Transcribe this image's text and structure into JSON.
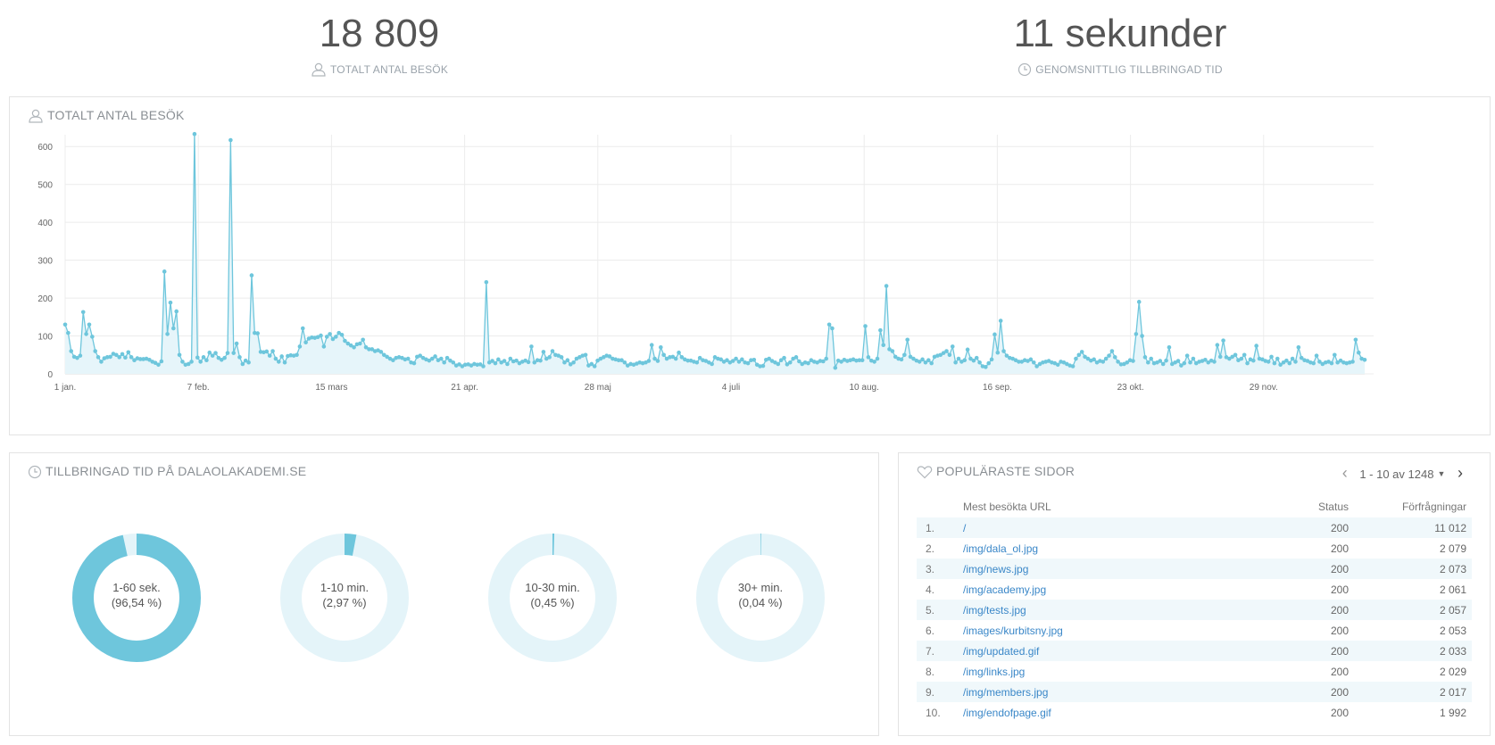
{
  "summary": {
    "total_visits_value": "18 809",
    "total_visits_label": "TOTALT ANTAL BESÖK",
    "avg_time_value": "11 sekunder",
    "avg_time_label": "GENOMSNITTLIG TILLBRINGAD TID"
  },
  "visits_panel": {
    "title": "TOTALT ANTAL BESÖK"
  },
  "chart_data": {
    "type": "area",
    "title": "TOTALT ANTAL BESÖK",
    "xlabel": "",
    "ylabel": "",
    "ylim": [
      0,
      650
    ],
    "yticks": [
      "0",
      "100",
      "200",
      "300",
      "400",
      "500",
      "600"
    ],
    "xticks": [
      "1 jan.",
      "7 feb.",
      "15 mars",
      "21 apr.",
      "28 maj",
      "4 juli",
      "10 aug.",
      "16 sep.",
      "23 okt.",
      "29 nov."
    ],
    "grid": true,
    "color": "#6ec6dc",
    "values": [
      130,
      108,
      60,
      45,
      42,
      48,
      163,
      105,
      130,
      98,
      60,
      44,
      32,
      41,
      44,
      45,
      53,
      50,
      44,
      52,
      43,
      57,
      44,
      36,
      41,
      39,
      39,
      40,
      37,
      32,
      29,
      24,
      33,
      270,
      105,
      188,
      120,
      165,
      50,
      32,
      24,
      26,
      32,
      633,
      43,
      32,
      44,
      36,
      56,
      48,
      55,
      42,
      37,
      42,
      55,
      617,
      55,
      80,
      44,
      26,
      35,
      30,
      260,
      108,
      107,
      58,
      57,
      59,
      48,
      60,
      40,
      32,
      46,
      30,
      47,
      49,
      48,
      50,
      72,
      120,
      83,
      93,
      96,
      95,
      97,
      101,
      72,
      98,
      105,
      92,
      98,
      108,
      103,
      87,
      80,
      75,
      70,
      78,
      80,
      90,
      70,
      65,
      65,
      60,
      62,
      58,
      50,
      45,
      40,
      36,
      42,
      44,
      42,
      38,
      40,
      30,
      28,
      45,
      48,
      42,
      38,
      35,
      40,
      46,
      36,
      40,
      30,
      42,
      35,
      30,
      22,
      25,
      20,
      24,
      25,
      22,
      26,
      24,
      25,
      20,
      242,
      30,
      34,
      28,
      38,
      30,
      34,
      26,
      40,
      33,
      35,
      28,
      32,
      35,
      31,
      72,
      30,
      36,
      35,
      58,
      40,
      44,
      60,
      50,
      48,
      44,
      30,
      36,
      25,
      30,
      40,
      44,
      48,
      50,
      22,
      26,
      20,
      35,
      40,
      44,
      48,
      46,
      40,
      38,
      36,
      36,
      30,
      22,
      26,
      24,
      27,
      30,
      28,
      30,
      34,
      76,
      40,
      34,
      70,
      50,
      40,
      44,
      45,
      40,
      56,
      44,
      38,
      35,
      35,
      32,
      30,
      42,
      36,
      34,
      30,
      26,
      44,
      40,
      38,
      32,
      36,
      30,
      34,
      40,
      32,
      38,
      30,
      28,
      36,
      37,
      24,
      20,
      21,
      37,
      40,
      34,
      30,
      26,
      36,
      42,
      25,
      30,
      40,
      44,
      33,
      26,
      30,
      28,
      36,
      32,
      30,
      34,
      33,
      40,
      130,
      120,
      16,
      35,
      32,
      37,
      34,
      36,
      38,
      35,
      36,
      36,
      126,
      44,
      35,
      32,
      40,
      115,
      76,
      232,
      65,
      60,
      45,
      40,
      38,
      50,
      90,
      45,
      40,
      35,
      32,
      38,
      30,
      36,
      28,
      45,
      48,
      50,
      55,
      60,
      50,
      72,
      30,
      40,
      32,
      36,
      64,
      40,
      35,
      42,
      30,
      20,
      18,
      28,
      38,
      104,
      56,
      140,
      60,
      48,
      42,
      40,
      36,
      32,
      32,
      36,
      34,
      38,
      30,
      20,
      26,
      30,
      32,
      34,
      30,
      28,
      24,
      32,
      30,
      26,
      22,
      20,
      40,
      50,
      58,
      45,
      40,
      35,
      38,
      30,
      34,
      32,
      40,
      48,
      60,
      44,
      32,
      25,
      26,
      30,
      36,
      34,
      105,
      190,
      100,
      44,
      30,
      40,
      28,
      30,
      34,
      26,
      35,
      70,
      26,
      30,
      34,
      22,
      28,
      48,
      30,
      40,
      28,
      32,
      34,
      37,
      30,
      35,
      32,
      76,
      45,
      88,
      44,
      40,
      45,
      50,
      36,
      40,
      50,
      28,
      38,
      35,
      74,
      40,
      38,
      34,
      32,
      45,
      28,
      40,
      24,
      30,
      35,
      28,
      40,
      32,
      70,
      42,
      36,
      34,
      30,
      28,
      48,
      32,
      26,
      30,
      32,
      28,
      50,
      30,
      35,
      30,
      28,
      30,
      32,
      90,
      56,
      40,
      37
    ]
  },
  "time_panel": {
    "title": "TILLBRINGAD TID PÅ DALAOLAKADEMI.SE",
    "segments": [
      {
        "label": "1-60 sek.",
        "pct_text": "(96,54 %)",
        "fraction": 0.9654
      },
      {
        "label": "1-10 min.",
        "pct_text": "(2,97 %)",
        "fraction": 0.0297
      },
      {
        "label": "10-30 min.",
        "pct_text": "(0,45 %)",
        "fraction": 0.0045
      },
      {
        "label": "30+ min.",
        "pct_text": "(0,04 %)",
        "fraction": 0.0004
      }
    ],
    "color_fill": "#6ec6dc",
    "color_track": "#e4f4f9"
  },
  "pages_panel": {
    "title": "POPULÄRASTE SIDOR",
    "pager_text": "1 - 10 av 1248",
    "columns": {
      "url": "Mest besökta URL",
      "status": "Status",
      "requests": "Förfrågningar"
    },
    "rows": [
      {
        "num": "1.",
        "url": "/",
        "status": "200",
        "requests": "11 012"
      },
      {
        "num": "2.",
        "url": "/img/dala_ol.jpg",
        "status": "200",
        "requests": "2 079"
      },
      {
        "num": "3.",
        "url": "/img/news.jpg",
        "status": "200",
        "requests": "2 073"
      },
      {
        "num": "4.",
        "url": "/img/academy.jpg",
        "status": "200",
        "requests": "2 061"
      },
      {
        "num": "5.",
        "url": "/img/tests.jpg",
        "status": "200",
        "requests": "2 057"
      },
      {
        "num": "6.",
        "url": "/images/kurbitsny.jpg",
        "status": "200",
        "requests": "2 053"
      },
      {
        "num": "7.",
        "url": "/img/updated.gif",
        "status": "200",
        "requests": "2 033"
      },
      {
        "num": "8.",
        "url": "/img/links.jpg",
        "status": "200",
        "requests": "2 029"
      },
      {
        "num": "9.",
        "url": "/img/members.jpg",
        "status": "200",
        "requests": "2 017"
      },
      {
        "num": "10.",
        "url": "/img/endofpage.gif",
        "status": "200",
        "requests": "1 992"
      }
    ]
  }
}
